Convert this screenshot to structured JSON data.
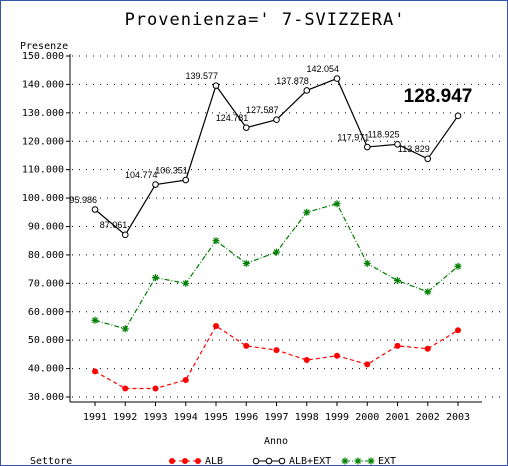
{
  "chart_data": {
    "type": "line",
    "title": "Provenienza=' 7-SVIZZERA'",
    "y_label": "Presenze",
    "x_label": "Anno",
    "legend_title": "Settore",
    "categories": [
      "1991",
      "1992",
      "1993",
      "1994",
      "1995",
      "1996",
      "1997",
      "1998",
      "1999",
      "2000",
      "2001",
      "2002",
      "2003"
    ],
    "series": [
      {
        "name": "ALB",
        "color": "#ff0000",
        "marker": "dot",
        "dash": "4,3",
        "values": [
          39000,
          33000,
          33000,
          36000,
          55000,
          48000,
          46500,
          43000,
          44500,
          41500,
          48000,
          47000,
          53500
        ]
      },
      {
        "name": "ALB+EXT",
        "color": "#000000",
        "marker": "circle",
        "dash": "none",
        "values": [
          95986,
          87061,
          104774,
          106351,
          139577,
          124781,
          127587,
          137878,
          142054,
          117971,
          118925,
          113829,
          128947
        ],
        "value_labels": [
          "95.986",
          "87.061",
          "104.774",
          "106.351",
          "139.577",
          "124.781",
          "127.587",
          "137.878",
          "142.054",
          "117.971",
          "118.925",
          "113.829",
          "128.947"
        ]
      },
      {
        "name": "EXT",
        "color": "#008000",
        "marker": "star",
        "dash": "5,2,1,2",
        "values": [
          57000,
          54000,
          72000,
          70000,
          85000,
          77000,
          81000,
          95000,
          98000,
          77000,
          71000,
          67000,
          76000
        ]
      }
    ],
    "ylim": [
      30000,
      150000
    ],
    "yticks": [
      {
        "value": 30000,
        "label": "30.000"
      },
      {
        "value": 40000,
        "label": "40.000"
      },
      {
        "value": 50000,
        "label": "50.000"
      },
      {
        "value": 60000,
        "label": "60.000"
      },
      {
        "value": 70000,
        "label": "70.000"
      },
      {
        "value": 80000,
        "label": "80.000"
      },
      {
        "value": 90000,
        "label": "90.000"
      },
      {
        "value": 100000,
        "label": "100.000"
      },
      {
        "value": 110000,
        "label": "110.000"
      },
      {
        "value": 120000,
        "label": "120.000"
      },
      {
        "value": 130000,
        "label": "130.000"
      },
      {
        "value": 140000,
        "label": "140.000"
      },
      {
        "value": 150000,
        "label": "150.000"
      }
    ],
    "grid": true
  }
}
